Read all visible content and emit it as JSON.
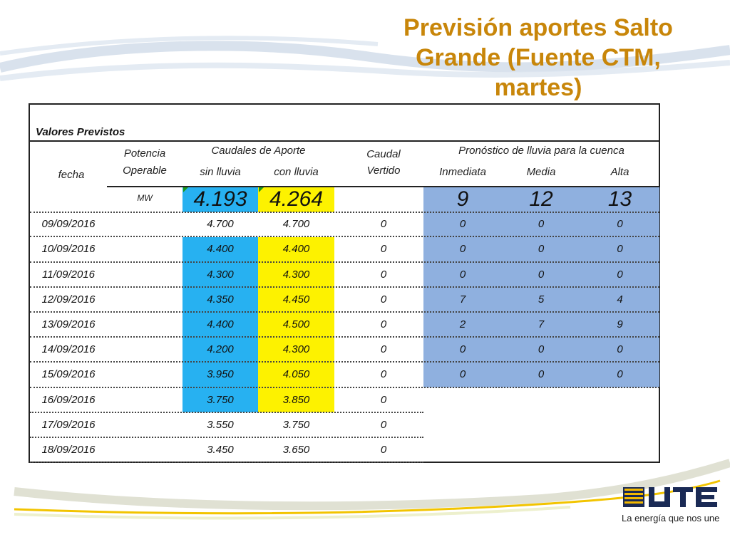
{
  "title": {
    "line1": "Previsión aportes Salto",
    "line2": "Grande (Fuente CTM,",
    "line3": "martes)"
  },
  "table": {
    "section_label": "Valores Previstos",
    "headers": {
      "fecha": "fecha",
      "potencia_1": "Potencia",
      "potencia_2": "Operable",
      "caudales": "Caudales de Aporte",
      "sin_lluvia": "sin lluvia",
      "con_lluvia": "con lluvia",
      "caudal_1": "Caudal",
      "caudal_2": "Vertido",
      "pronostico": "Pronóstico de lluvia para la cuenca",
      "inmediata": "Inmediata",
      "media": "Media",
      "alta": "Alta"
    },
    "summary": {
      "unit": "MW",
      "sin_lluvia": "4.193",
      "con_lluvia": "4.264",
      "inmediata": "9",
      "media": "12",
      "alta": "13"
    },
    "rows": [
      {
        "fecha": "09/09/2016",
        "sin": "4.700",
        "con": "4.700",
        "vertido": "0",
        "inm": "0",
        "med": "0",
        "alta": "0"
      },
      {
        "fecha": "10/09/2016",
        "sin": "4.400",
        "con": "4.400",
        "vertido": "0",
        "inm": "0",
        "med": "0",
        "alta": "0"
      },
      {
        "fecha": "11/09/2016",
        "sin": "4.300",
        "con": "4.300",
        "vertido": "0",
        "inm": "0",
        "med": "0",
        "alta": "0"
      },
      {
        "fecha": "12/09/2016",
        "sin": "4.350",
        "con": "4.450",
        "vertido": "0",
        "inm": "7",
        "med": "5",
        "alta": "4"
      },
      {
        "fecha": "13/09/2016",
        "sin": "4.400",
        "con": "4.500",
        "vertido": "0",
        "inm": "2",
        "med": "7",
        "alta": "9"
      },
      {
        "fecha": "14/09/2016",
        "sin": "4.200",
        "con": "4.300",
        "vertido": "0",
        "inm": "0",
        "med": "0",
        "alta": "0"
      },
      {
        "fecha": "15/09/2016",
        "sin": "3.950",
        "con": "4.050",
        "vertido": "0",
        "inm": "0",
        "med": "0",
        "alta": "0"
      },
      {
        "fecha": "16/09/2016",
        "sin": "3.750",
        "con": "3.850",
        "vertido": "0",
        "inm": "",
        "med": "",
        "alta": ""
      },
      {
        "fecha": "17/09/2016",
        "sin": "3.550",
        "con": "3.750",
        "vertido": "0",
        "inm": "",
        "med": "",
        "alta": ""
      },
      {
        "fecha": "18/09/2016",
        "sin": "3.450",
        "con": "3.650",
        "vertido": "0",
        "inm": "",
        "med": "",
        "alta": ""
      }
    ]
  },
  "logo": {
    "brand": "UTE",
    "slogan": "La energía que nos une",
    "icon": "ute-logo-icon"
  },
  "colors": {
    "title": "#c8860a",
    "blue_fill": "#27b1f1",
    "yellow_fill": "#fdf200",
    "steel_fill": "#8fb0df",
    "validation_marker": "#1a9a1a"
  }
}
